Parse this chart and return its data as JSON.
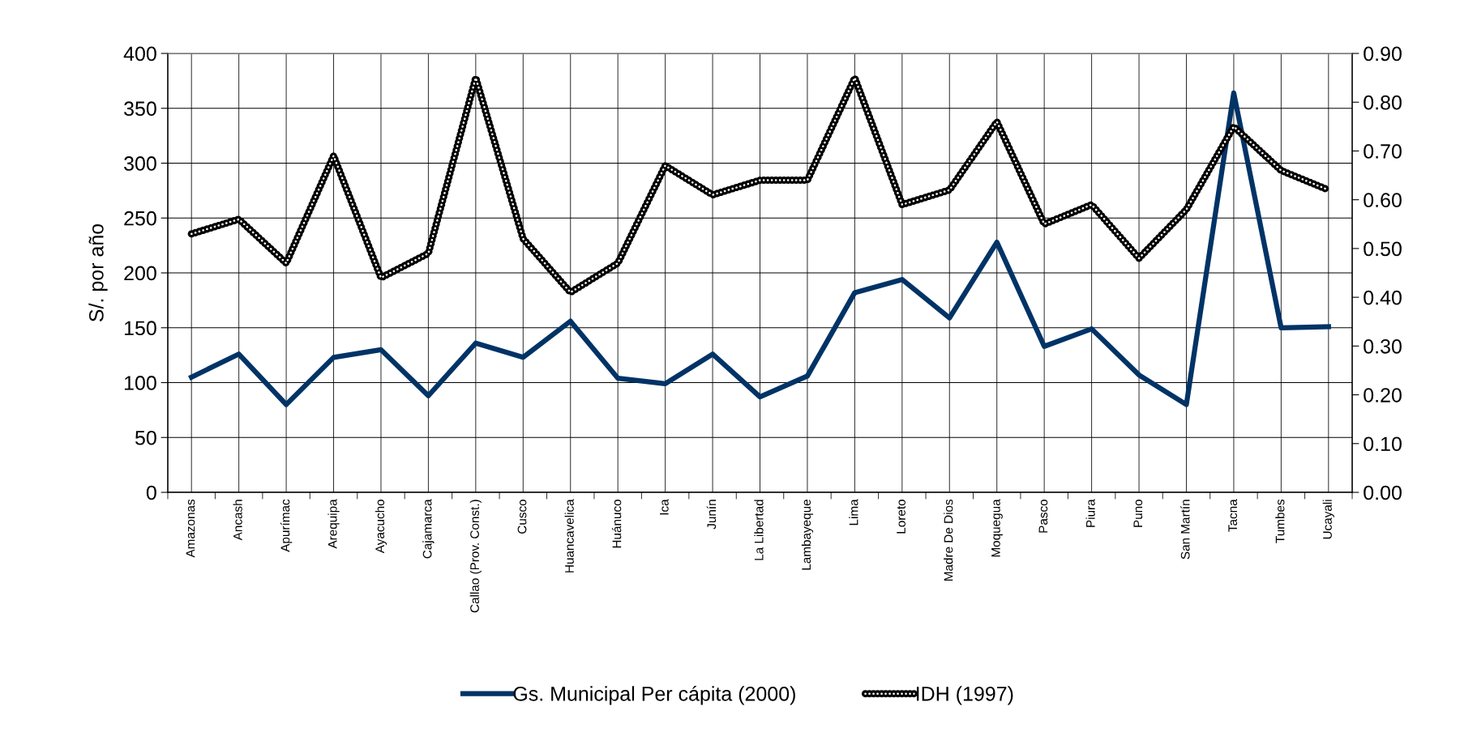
{
  "chart_data": {
    "type": "line",
    "categories": [
      "Amazonas",
      "Ancash",
      "Apurímac",
      "Arequipa",
      "Ayacucho",
      "Cajamarca",
      "Callao (Prov. Const.)",
      "Cusco",
      "Huancavelica",
      "Huánuco",
      "Ica",
      "Junín",
      "La Libertad",
      "Lambayeque",
      "Lima",
      "Loreto",
      "Madre De Dios",
      "Moquegua",
      "Pasco",
      "Piura",
      "Puno",
      "San Martín",
      "Tacna",
      "Tumbes",
      "Ucayali"
    ],
    "ylabel": "S/. por año",
    "ylim": [
      0,
      400
    ],
    "yticks": [
      0,
      50,
      100,
      150,
      200,
      250,
      300,
      350,
      400
    ],
    "y2lim": [
      0,
      0.9
    ],
    "y2ticks": [
      {
        "value": 0,
        "label": "0.00"
      },
      {
        "value": 0.1,
        "label": "0.10"
      },
      {
        "value": 0.2,
        "label": "0.20"
      },
      {
        "value": 0.3,
        "label": "0.30"
      },
      {
        "value": 0.4,
        "label": "0.40"
      },
      {
        "value": 0.5,
        "label": "0.50"
      },
      {
        "value": 0.6,
        "label": "0.60"
      },
      {
        "value": 0.7,
        "label": "0.70"
      },
      {
        "value": 0.8,
        "label": "0.80"
      },
      {
        "value": 0.9,
        "label": "0.90"
      }
    ],
    "grid": true,
    "legend": "bottom",
    "series": [
      {
        "name": "Gs. Municipal Per cápita (2000)",
        "color": "#003366",
        "line_style": "solid",
        "values": [
          105,
          126,
          80,
          123,
          130,
          88,
          136,
          123,
          156,
          104,
          99,
          126,
          87,
          106,
          182,
          194,
          159,
          228,
          133,
          149,
          107,
          80,
          364,
          150,
          151
        ]
      },
      {
        "name": "IDH (1997)",
        "color": "#000000",
        "axis": "y2",
        "line_style": "dotted",
        "values": [
          0.53,
          0.56,
          0.47,
          0.69,
          0.44,
          0.49,
          0.85,
          0.52,
          0.41,
          0.47,
          0.67,
          0.61,
          0.64,
          0.64,
          0.85,
          0.59,
          0.62,
          0.76,
          0.55,
          0.59,
          0.48,
          0.58,
          0.75,
          0.66,
          0.62
        ]
      }
    ]
  }
}
